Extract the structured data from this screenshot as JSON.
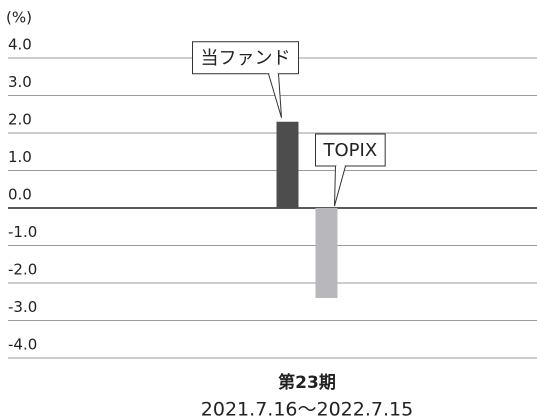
{
  "chart_data": {
    "type": "bar",
    "y_unit": "(%)",
    "categories": [
      "第23期"
    ],
    "category_periods": [
      "2021.7.16～2022.7.15"
    ],
    "series": [
      {
        "name": "当ファンド",
        "color": "#4d4d4d",
        "values": [
          2.3
        ]
      },
      {
        "name": "TOPIX",
        "color": "#b8b8bc",
        "values": [
          -2.4
        ]
      }
    ],
    "ylim": [
      -4,
      4
    ],
    "yticks": [
      {
        "value": 4,
        "label": "4.0"
      },
      {
        "value": 3,
        "label": "3.0"
      },
      {
        "value": 2,
        "label": "2.0"
      },
      {
        "value": 1,
        "label": "1.0"
      },
      {
        "value": 0,
        "label": "0.0"
      },
      {
        "value": -1,
        "label": "-1.0"
      },
      {
        "value": -2,
        "label": "-2.0"
      },
      {
        "value": -3,
        "label": "-3.0"
      },
      {
        "value": -4,
        "label": "-4.0"
      }
    ],
    "grid": true
  }
}
